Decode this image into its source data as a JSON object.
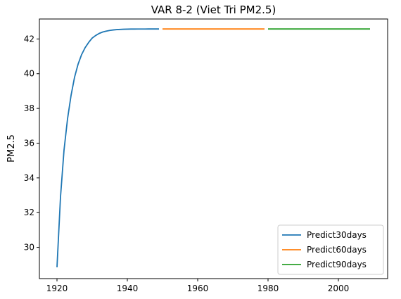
{
  "chart_data": {
    "type": "line",
    "title": "VAR 8-2 (Viet Tri PM2.5)",
    "xlabel": "",
    "ylabel": "PM2.5",
    "xlim": [
      1915,
      2014
    ],
    "ylim": [
      28.2,
      43.15
    ],
    "xticks": [
      1920,
      1940,
      1960,
      1980,
      2000
    ],
    "yticks": [
      30,
      32,
      34,
      36,
      38,
      40,
      42
    ],
    "grid": false,
    "legend_position": "lower right",
    "series": [
      {
        "name": "Predict30days",
        "color": "#1f77b4",
        "x": [
          1920,
          1921,
          1922,
          1923,
          1924,
          1925,
          1926,
          1927,
          1928,
          1929,
          1930,
          1931,
          1932,
          1933,
          1934,
          1935,
          1936,
          1937,
          1938,
          1939,
          1940,
          1941,
          1942,
          1943,
          1944,
          1945,
          1946,
          1947,
          1948,
          1949
        ],
        "y": [
          28.85,
          32.9,
          35.6,
          37.4,
          38.75,
          39.8,
          40.55,
          41.1,
          41.5,
          41.8,
          42.05,
          42.2,
          42.32,
          42.4,
          42.45,
          42.49,
          42.52,
          42.54,
          42.55,
          42.56,
          42.565,
          42.57,
          42.57,
          42.572,
          42.573,
          42.574,
          42.575,
          42.575,
          42.576,
          42.576
        ]
      },
      {
        "name": "Predict60days",
        "color": "#ff7f0e",
        "x": [
          1950,
          1979
        ],
        "y": [
          42.576,
          42.576
        ]
      },
      {
        "name": "Predict90days",
        "color": "#2ca02c",
        "x": [
          1980,
          2009
        ],
        "y": [
          42.576,
          42.576
        ]
      }
    ]
  }
}
